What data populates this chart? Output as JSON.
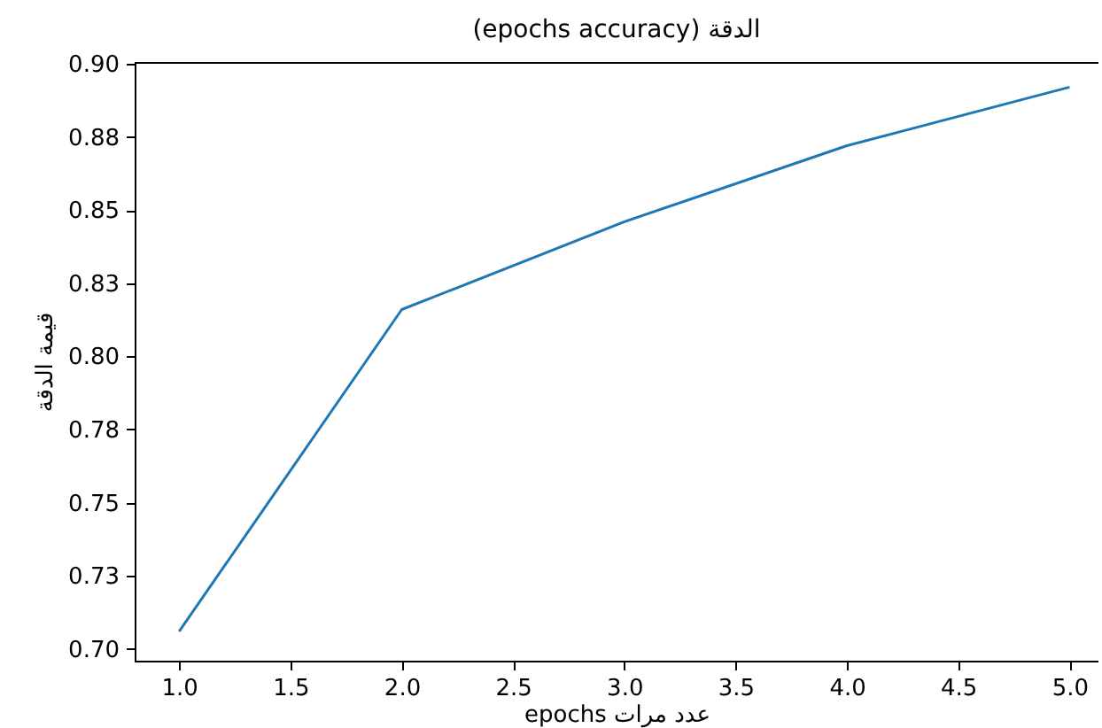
{
  "chart_data": {
    "type": "line",
    "title": "(epochs accuracy) الدقة",
    "xlabel": "epochs عدد مرات",
    "ylabel": "قيمة الدقة",
    "x": [
      1,
      2,
      3,
      4,
      5
    ],
    "series": [
      {
        "color": "#1f77b4",
        "values": [
          0.706,
          0.816,
          0.846,
          0.872,
          0.892
        ]
      }
    ],
    "xlim": [
      0.8,
      5.13
    ],
    "xticks": [
      {
        "value": 1,
        "label": "1.0"
      },
      1.5,
      {
        "value": 2,
        "label": "2.0"
      },
      2.5,
      {
        "value": 3,
        "label": "3.0"
      },
      3.5,
      {
        "value": 4,
        "label": "4.0"
      },
      4.5,
      {
        "value": 5,
        "label": "5.0"
      }
    ],
    "ylim": [
      0.696,
      0.9006
    ],
    "yticks": [
      {
        "value": 0.7,
        "label": "0.70"
      },
      {
        "value": 0.725,
        "label": "0.73"
      },
      {
        "value": 0.75,
        "label": "0.75"
      },
      {
        "value": 0.775,
        "label": "0.78"
      },
      {
        "value": 0.8,
        "label": "0.80"
      },
      {
        "value": 0.825,
        "label": "0.83"
      },
      {
        "value": 0.85,
        "label": "0.85"
      },
      {
        "value": 0.875,
        "label": "0.88"
      },
      {
        "value": 0.9,
        "label": "0.90"
      }
    ],
    "grid": false,
    "marker": "none",
    "line_style": "solid"
  }
}
